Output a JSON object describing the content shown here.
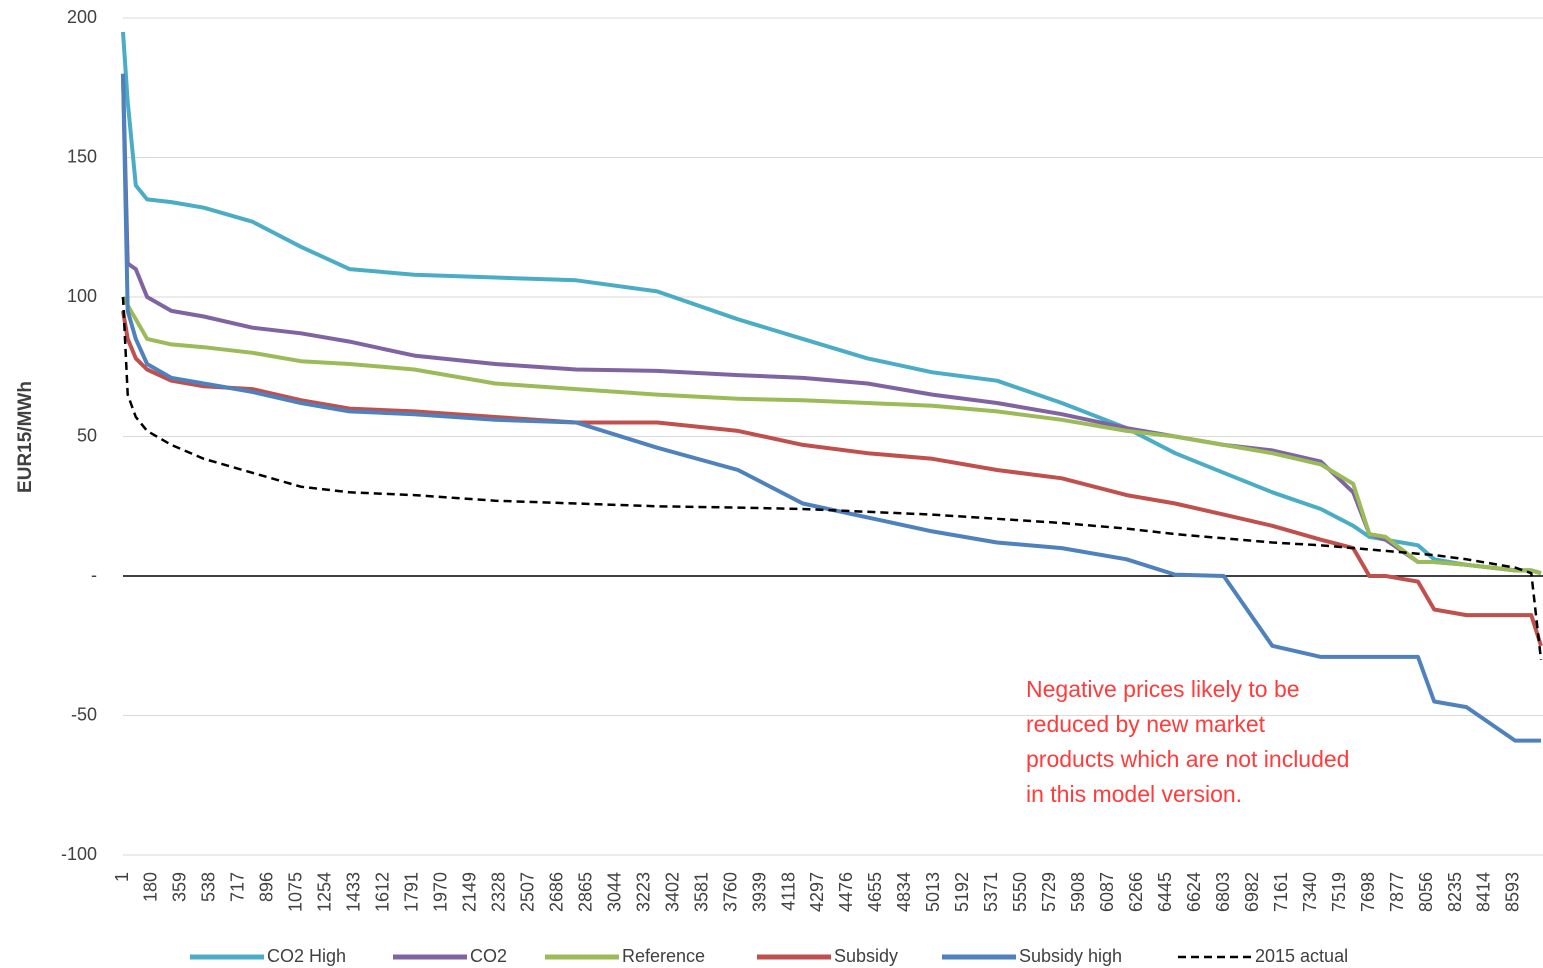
{
  "chart_data": {
    "type": "line",
    "y_axis_label": "EUR15/MWh",
    "annotation": [
      "Negative prices likely to be",
      "reduced by new market",
      "products which are not included",
      "in this model version."
    ],
    "annotation_color": "#ff3b3b",
    "xlim": [
      1,
      8760
    ],
    "xticks": [
      1,
      180,
      359,
      538,
      717,
      896,
      1075,
      1254,
      1433,
      1612,
      1791,
      1970,
      2149,
      2328,
      2507,
      2686,
      2865,
      3044,
      3223,
      3402,
      3581,
      3760,
      3939,
      4118,
      4297,
      4476,
      4655,
      4834,
      5013,
      5192,
      5371,
      5550,
      5729,
      5908,
      6087,
      6266,
      6445,
      6624,
      6803,
      6982,
      7161,
      7340,
      7519,
      7698,
      7877,
      8056,
      8235,
      8414,
      8593
    ],
    "ylim": [
      -100,
      200
    ],
    "yticks": [
      -100,
      -50,
      {
        "value": 0,
        "label": "-"
      },
      50,
      100,
      150,
      200
    ],
    "grid": true,
    "legend": "bottom",
    "x": [
      1,
      30,
      80,
      150,
      300,
      500,
      800,
      1100,
      1400,
      1800,
      2300,
      2800,
      3300,
      3800,
      4200,
      4600,
      5000,
      5400,
      5800,
      6200,
      6500,
      6800,
      7100,
      7400,
      7600,
      7700,
      7800,
      8000,
      8100,
      8300,
      8600,
      8700,
      8760
    ],
    "series": [
      {
        "name": "CO2 High",
        "color": "#4bacc6",
        "dashed": false,
        "values": [
          195,
          170,
          140,
          135,
          134,
          132,
          127,
          118,
          110,
          108,
          107,
          106,
          102,
          92,
          85,
          78,
          73,
          70,
          62,
          53,
          44,
          37,
          30,
          24,
          18,
          14,
          13,
          11,
          6,
          4,
          2,
          2,
          1
        ]
      },
      {
        "name": "CO2",
        "color": "#8064a2",
        "dashed": false,
        "values": [
          180,
          112,
          110,
          100,
          95,
          93,
          89,
          87,
          84,
          79,
          76,
          74,
          73.5,
          72,
          71,
          69,
          65,
          62,
          58,
          53,
          50,
          47,
          45,
          41,
          30,
          15,
          13,
          5,
          5,
          4,
          2,
          2,
          1
        ]
      },
      {
        "name": "Reference",
        "color": "#9bbb59",
        "dashed": false,
        "values": [
          100,
          97,
          92,
          85,
          83,
          82,
          80,
          77,
          76,
          74,
          69,
          67,
          65,
          63.5,
          63,
          62,
          61,
          59,
          56,
          52,
          50,
          47,
          44,
          40,
          33,
          15,
          14,
          5,
          5,
          4,
          2,
          2,
          1
        ]
      },
      {
        "name": "Subsidy",
        "color": "#c0504d",
        "dashed": false,
        "values": [
          95,
          85,
          78,
          74,
          70,
          68,
          67,
          63,
          60,
          59,
          57,
          55,
          55,
          52,
          47,
          44,
          42,
          38,
          35,
          29,
          26,
          22,
          18,
          13,
          10,
          0,
          0,
          -2,
          -12,
          -14,
          -14,
          -14,
          -25
        ]
      },
      {
        "name": "Subsidy high",
        "color": "#4f81bd",
        "dashed": false,
        "values": [
          180,
          95,
          85,
          76,
          71,
          69,
          66,
          62,
          59,
          58,
          56,
          55,
          46,
          38,
          26,
          21,
          16,
          12,
          10,
          6,
          0.5,
          0,
          -25,
          -29,
          -29,
          -29,
          -29,
          -29,
          -45,
          -47,
          -59,
          -59,
          -59
        ]
      },
      {
        "name": "2015 actual",
        "color": "#000000",
        "dashed": true,
        "values": [
          100,
          65,
          57,
          52,
          47,
          42,
          37,
          32,
          30,
          29,
          27,
          26,
          25,
          24.5,
          24,
          23,
          22,
          20.5,
          19,
          17,
          15,
          13.5,
          12,
          11,
          10,
          9.5,
          9,
          8,
          7.5,
          6,
          3,
          1,
          -30
        ]
      }
    ]
  }
}
